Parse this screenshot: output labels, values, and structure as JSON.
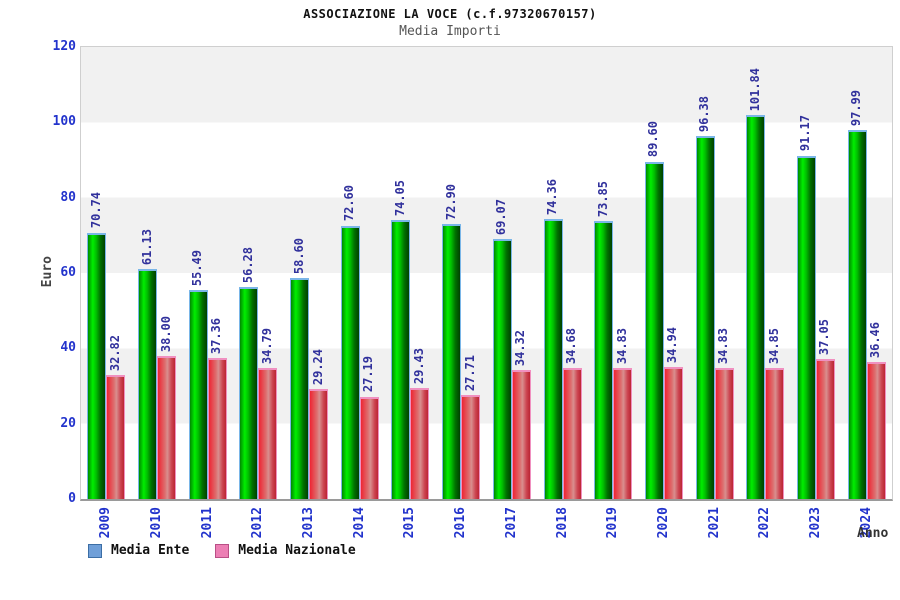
{
  "header": {
    "title": "ASSOCIAZIONE LA VOCE (c.f.97320670157)",
    "subtitle": "Media Importi"
  },
  "chart_data": {
    "type": "bar",
    "title": "ASSOCIAZIONE LA VOCE (c.f.97320670157)",
    "subtitle": "Media Importi",
    "xlabel": "Anno",
    "ylabel": "Euro",
    "ylim": [
      0,
      120
    ],
    "yticks": [
      0,
      20,
      40,
      60,
      80,
      100,
      120
    ],
    "grid": "alternating-horizontal-bands",
    "legend_position": "bottom-left",
    "value_labels": "rotated-90-above-bars",
    "categories": [
      "2009",
      "2010",
      "2011",
      "2012",
      "2013",
      "2014",
      "2015",
      "2016",
      "2017",
      "2018",
      "2019",
      "2020",
      "2021",
      "2022",
      "2023",
      "2024"
    ],
    "series": [
      {
        "name": "Media Ente",
        "values": [
          70.74,
          61.13,
          55.49,
          56.28,
          58.6,
          72.6,
          74.05,
          72.9,
          69.07,
          74.36,
          73.85,
          89.6,
          96.38,
          101.84,
          91.17,
          97.99
        ]
      },
      {
        "name": "Media Nazionale",
        "values": [
          32.82,
          38.0,
          37.36,
          34.79,
          29.24,
          27.19,
          29.43,
          27.71,
          34.32,
          34.68,
          34.83,
          34.94,
          34.83,
          34.85,
          37.05,
          36.46
        ]
      }
    ]
  },
  "legend": {
    "items": [
      {
        "label": "Media Ente",
        "swatch": "#6f9fd8",
        "swatch_border": "#3c6ea5"
      },
      {
        "label": "Media Nazionale",
        "swatch": "#ec7fb4",
        "swatch_border": "#b94f86"
      }
    ]
  },
  "colors": {
    "axis_tick_text": "#2233cc",
    "value_label_text": "#31319c",
    "band_gray": "#f1f1f1",
    "band_white": "#ffffff",
    "plot_border": "#cfcfcf",
    "baseline": "#9a9a9a",
    "green_gradient": [
      "#008a00 0%",
      "#00ee00 28%",
      "#00c000 48%",
      "#007200 72%",
      "#004000 100%"
    ],
    "green_border": "#7ab6e8",
    "red_gradient": [
      "#ee2533 0%",
      "#dd7070 42%",
      "#d98f8f 55%",
      "#cc4450 80%",
      "#bb2533 100%"
    ],
    "red_border": "#f090c0"
  }
}
